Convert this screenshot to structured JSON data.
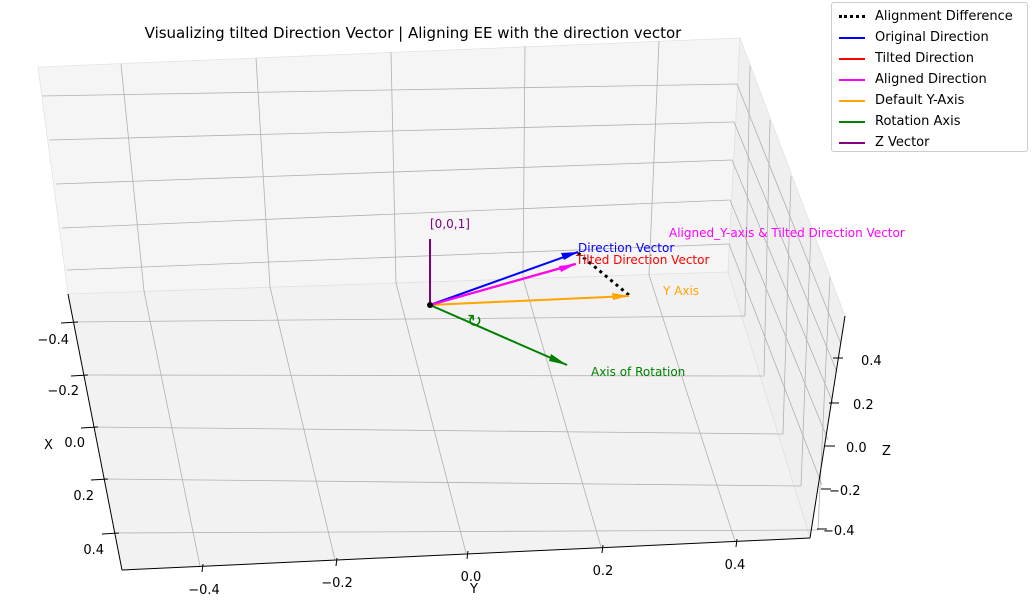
{
  "chart_data": {
    "type": "3d-vector",
    "title": "Visualizing tilted Direction Vector | Aligning EE with the direction vector",
    "xlabel": "X",
    "ylabel": "Y",
    "zlabel": "Z",
    "xticks": [
      "−0.4",
      "−0.2",
      "0.0",
      "0.2",
      "0.4"
    ],
    "yticks": [
      "−0.4",
      "−0.2",
      "0.0",
      "0.2",
      "0.4"
    ],
    "zticks": [
      "−0.4",
      "−0.2",
      "0.0",
      "0.2",
      "0.4"
    ],
    "xlim": [
      -0.5,
      0.5
    ],
    "ylim": [
      -0.5,
      0.5
    ],
    "zlim": [
      -0.5,
      0.5
    ],
    "grid": true,
    "legend_position": "top-right",
    "colors": {
      "original": "#0000ff",
      "tilted": "#ff0000",
      "aligned": "#ff00ff",
      "default_y": "#ffa500",
      "rotation": "#008000",
      "z_vector": "#800080",
      "difference": "#000000"
    },
    "legend": [
      {
        "label": "Alignment Difference",
        "color": "#000000",
        "style": "dotted"
      },
      {
        "label": "Original Direction",
        "color": "#0000ff",
        "style": "solid"
      },
      {
        "label": "Tilted Direction",
        "color": "#ff0000",
        "style": "solid"
      },
      {
        "label": "Aligned Direction",
        "color": "#ff00ff",
        "style": "solid"
      },
      {
        "label": "Default Y-Axis",
        "color": "#ffa500",
        "style": "solid"
      },
      {
        "label": "Rotation Axis",
        "color": "#008000",
        "style": "solid"
      },
      {
        "label": "Z Vector",
        "color": "#800080",
        "style": "solid"
      }
    ],
    "annotations": {
      "z_vector": "[0,0,1]",
      "direction": "Direction Vector",
      "tilted": "Tilted Direction Vector",
      "aligned": "Aligned_Y-axis & Tilted Direction Vector",
      "y_axis": "Y Axis",
      "rotation": "Axis of Rotation",
      "rotation_symbol": "↻"
    }
  }
}
